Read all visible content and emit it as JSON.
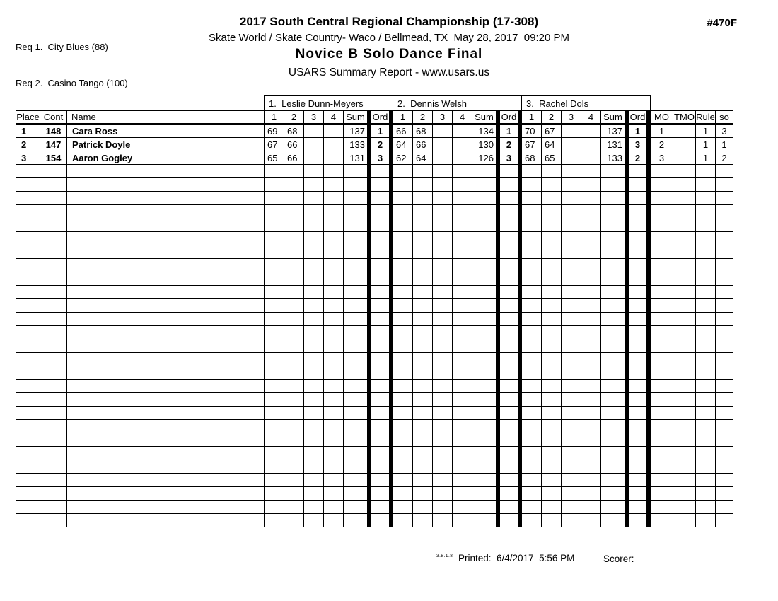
{
  "header": {
    "req_lines": [
      "Req 1.  City Blues (88)",
      "Req 2.  Casino Tango (100)"
    ],
    "title": "2017 South Central Regional Championship (17-308)",
    "venue_line": "Skate World / Skate Country- Waco / Bellmead, TX  May 28, 2017  09:20 PM",
    "event_title": "Novice B Solo Dance Final",
    "report_line": "USARS Summary Report - www.usars.us",
    "event_number": "#470F"
  },
  "table": {
    "judges": [
      {
        "label": "1.  Leslie Dunn-Meyers"
      },
      {
        "label": "2.  Dennis Welsh"
      },
      {
        "label": "3.  Rachel Dols"
      }
    ],
    "headers": {
      "place": "Place",
      "cont": "Cont",
      "name": "Name",
      "judge_cols": [
        "1",
        "2",
        "3",
        "4",
        "Sum",
        "Ord"
      ],
      "mo": "MO",
      "tmo": "TMO",
      "rule": "Rule",
      "so": "so"
    },
    "rows": [
      {
        "place": "1",
        "cont": "148",
        "name": "Cara Ross",
        "judges": [
          {
            "s1": "69",
            "s2": "68",
            "s3": "",
            "s4": "",
            "sum": "137",
            "ord": "1"
          },
          {
            "s1": "66",
            "s2": "68",
            "s3": "",
            "s4": "",
            "sum": "134",
            "ord": "1"
          },
          {
            "s1": "70",
            "s2": "67",
            "s3": "",
            "s4": "",
            "sum": "137",
            "ord": "1"
          }
        ],
        "mo": "1",
        "tmo": "",
        "rule": "1",
        "so": "3"
      },
      {
        "place": "2",
        "cont": "147",
        "name": "Patrick Doyle",
        "judges": [
          {
            "s1": "67",
            "s2": "66",
            "s3": "",
            "s4": "",
            "sum": "133",
            "ord": "2"
          },
          {
            "s1": "64",
            "s2": "66",
            "s3": "",
            "s4": "",
            "sum": "130",
            "ord": "2"
          },
          {
            "s1": "67",
            "s2": "64",
            "s3": "",
            "s4": "",
            "sum": "131",
            "ord": "3"
          }
        ],
        "mo": "2",
        "tmo": "",
        "rule": "1",
        "so": "1"
      },
      {
        "place": "3",
        "cont": "154",
        "name": "Aaron Gogley",
        "judges": [
          {
            "s1": "65",
            "s2": "66",
            "s3": "",
            "s4": "",
            "sum": "131",
            "ord": "3"
          },
          {
            "s1": "62",
            "s2": "64",
            "s3": "",
            "s4": "",
            "sum": "126",
            "ord": "3"
          },
          {
            "s1": "68",
            "s2": "65",
            "s3": "",
            "s4": "",
            "sum": "133",
            "ord": "2"
          }
        ],
        "mo": "3",
        "tmo": "",
        "rule": "1",
        "so": "2"
      }
    ],
    "empty_row_count": 27
  },
  "footer": {
    "version": "3.8.1.8",
    "printed_line": "Printed:  6/4/2017  5:56 PM",
    "scorer_label": "Scorer:"
  }
}
